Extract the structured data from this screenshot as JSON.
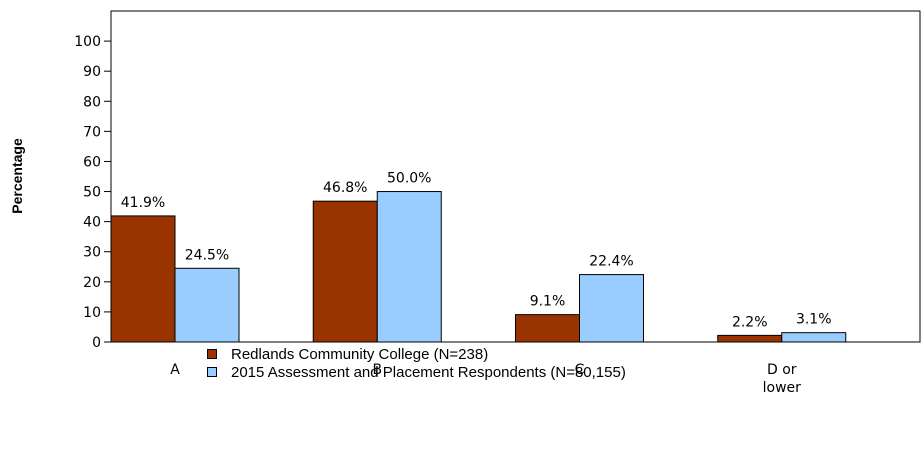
{
  "chart_data": {
    "type": "bar",
    "ylabel": "Percentage",
    "ylim": [
      0,
      110
    ],
    "yticks": [
      0,
      10,
      20,
      30,
      40,
      50,
      60,
      70,
      80,
      90,
      100
    ],
    "categories": [
      "A",
      "B",
      "C",
      "D or lower"
    ],
    "series": [
      {
        "name": "Redlands Community College (N=238)",
        "color": "#993300",
        "values": [
          41.9,
          46.8,
          9.1,
          2.2
        ],
        "labels": [
          "41.9%",
          "46.8%",
          "9.1%",
          "2.2%"
        ]
      },
      {
        "name": "2015 Assessment and Placement Respondents (N=80,155)",
        "color": "#99ccff",
        "values": [
          24.5,
          50.0,
          22.4,
          3.1
        ],
        "labels": [
          "24.5%",
          "50.0%",
          "22.4%",
          "3.1%"
        ]
      }
    ],
    "grid": false,
    "legend_position": "bottom-center"
  }
}
